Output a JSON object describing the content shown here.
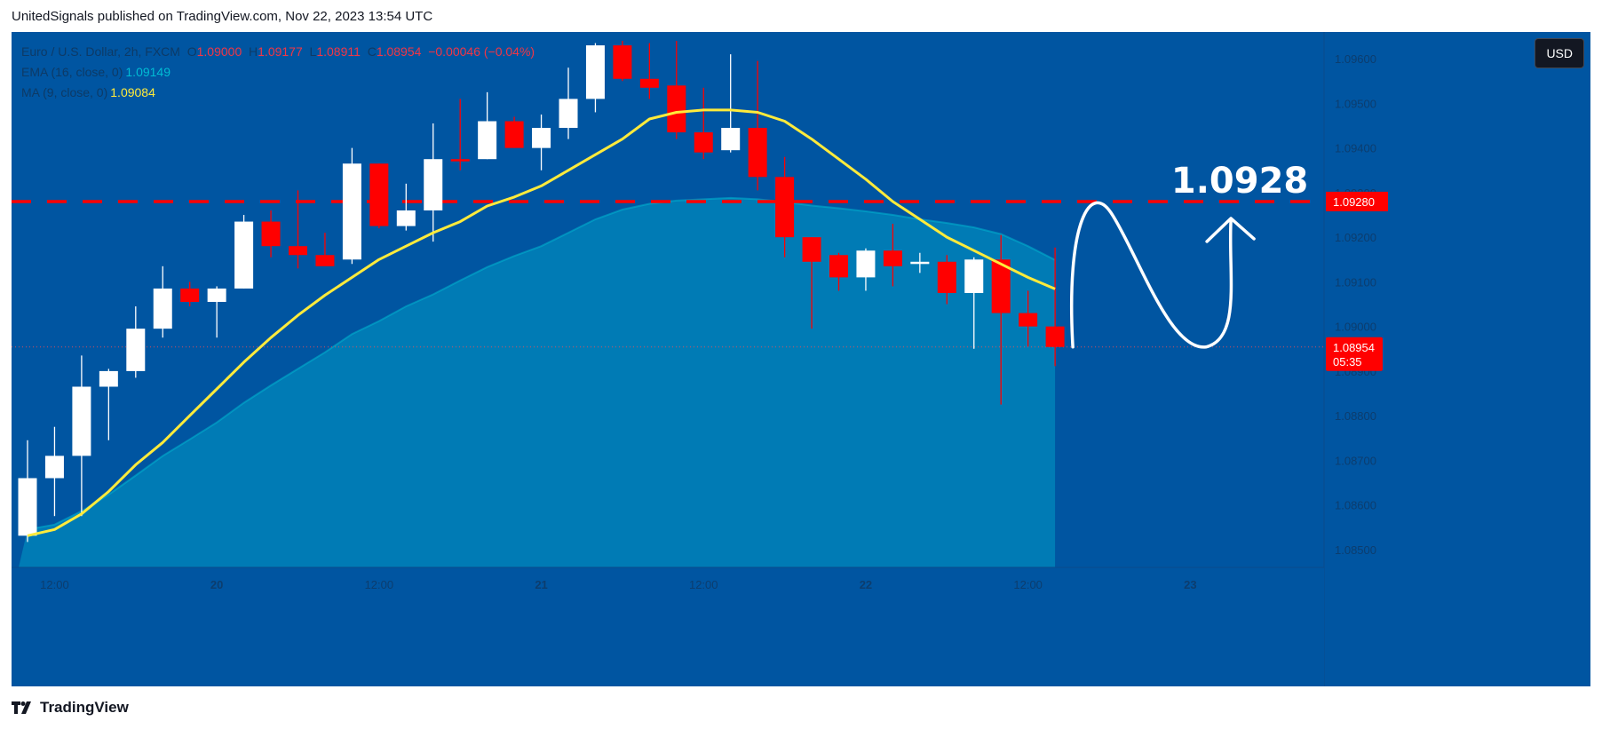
{
  "header": {
    "published_text": "UnitedSignals published on TradingView.com, Nov 22, 2023 13:54 UTC"
  },
  "legend": {
    "symbol": "Euro / U.S. Dollar, 2h, FXCM",
    "open_label": "O",
    "open": "1.09000",
    "high_label": "H",
    "high": "1.09177",
    "low_label": "L",
    "low": "1.08911",
    "close_label": "C",
    "close": "1.08954",
    "change": "−0.00046 (−0.04%)",
    "ema_label": "EMA (16, close, 0)",
    "ema_value": "1.09149",
    "ma_label": "MA (9, close, 0)",
    "ma_value": "1.09084"
  },
  "currency_button": "USD",
  "footer": {
    "brand": "TradingView"
  },
  "colors": {
    "background": "#0055a1",
    "up_candle": "#ffffff",
    "down_candle": "#ff0000",
    "ema_fill": "#0083b8",
    "ema_line": "#00bcd4",
    "ma_line": "#ffeb3b",
    "target_line": "#ff0000",
    "annotation": "#ffffff"
  },
  "chart_data": {
    "type": "candlestick",
    "ylim": [
      1.0846,
      1.0966
    ],
    "y_ticks": [
      "1.08500",
      "1.08600",
      "1.08700",
      "1.08800",
      "1.08900",
      "1.09000",
      "1.09100",
      "1.09200",
      "1.09300",
      "1.09400",
      "1.09500",
      "1.09600"
    ],
    "x_ticks": [
      {
        "bar": 1,
        "label": "12:00"
      },
      {
        "bar": 7,
        "label": "20"
      },
      {
        "bar": 13,
        "label": "12:00"
      },
      {
        "bar": 19,
        "label": "21"
      },
      {
        "bar": 25,
        "label": "12:00"
      },
      {
        "bar": 31,
        "label": "22"
      },
      {
        "bar": 37,
        "label": "12:00"
      },
      {
        "bar": 43,
        "label": "23"
      }
    ],
    "candles": [
      {
        "o": 1.08531,
        "h": 1.08745,
        "l": 1.08517,
        "c": 1.0866
      },
      {
        "o": 1.0866,
        "h": 1.08775,
        "l": 1.08575,
        "c": 1.0871
      },
      {
        "o": 1.0871,
        "h": 1.08935,
        "l": 1.08575,
        "c": 1.08865
      },
      {
        "o": 1.08865,
        "h": 1.08905,
        "l": 1.08745,
        "c": 1.089
      },
      {
        "o": 1.089,
        "h": 1.09045,
        "l": 1.08885,
        "c": 1.08995
      },
      {
        "o": 1.08995,
        "h": 1.09135,
        "l": 1.08975,
        "c": 1.09085
      },
      {
        "o": 1.09085,
        "h": 1.091,
        "l": 1.09045,
        "c": 1.09055
      },
      {
        "o": 1.09055,
        "h": 1.0909,
        "l": 1.08975,
        "c": 1.09085
      },
      {
        "o": 1.09085,
        "h": 1.0925,
        "l": 1.09085,
        "c": 1.09235
      },
      {
        "o": 1.09235,
        "h": 1.0926,
        "l": 1.09155,
        "c": 1.0918
      },
      {
        "o": 1.0918,
        "h": 1.09305,
        "l": 1.0913,
        "c": 1.0916
      },
      {
        "o": 1.0916,
        "h": 1.0921,
        "l": 1.0914,
        "c": 1.09135
      },
      {
        "o": 1.0915,
        "h": 1.094,
        "l": 1.0914,
        "c": 1.09365
      },
      {
        "o": 1.09365,
        "h": 1.09365,
        "l": 1.0922,
        "c": 1.09225
      },
      {
        "o": 1.09225,
        "h": 1.0932,
        "l": 1.09215,
        "c": 1.0926
      },
      {
        "o": 1.0926,
        "h": 1.09455,
        "l": 1.0919,
        "c": 1.09375
      },
      {
        "o": 1.09375,
        "h": 1.0951,
        "l": 1.0935,
        "c": 1.0937
      },
      {
        "o": 1.09375,
        "h": 1.09525,
        "l": 1.09375,
        "c": 1.0946
      },
      {
        "o": 1.0946,
        "h": 1.0947,
        "l": 1.094,
        "c": 1.094
      },
      {
        "o": 1.094,
        "h": 1.09475,
        "l": 1.0935,
        "c": 1.09445
      },
      {
        "o": 1.09445,
        "h": 1.0958,
        "l": 1.0942,
        "c": 1.0951
      },
      {
        "o": 1.0951,
        "h": 1.09635,
        "l": 1.0948,
        "c": 1.0963
      },
      {
        "o": 1.0963,
        "h": 1.0964,
        "l": 1.0955,
        "c": 1.09555
      },
      {
        "o": 1.09555,
        "h": 1.09635,
        "l": 1.0951,
        "c": 1.09535
      },
      {
        "o": 1.0954,
        "h": 1.0964,
        "l": 1.0942,
        "c": 1.09435
      },
      {
        "o": 1.09435,
        "h": 1.09535,
        "l": 1.09375,
        "c": 1.0939
      },
      {
        "o": 1.09395,
        "h": 1.0961,
        "l": 1.0939,
        "c": 1.09445
      },
      {
        "o": 1.09445,
        "h": 1.09595,
        "l": 1.09305,
        "c": 1.09335
      },
      {
        "o": 1.09335,
        "h": 1.0938,
        "l": 1.09155,
        "c": 1.092
      },
      {
        "o": 1.092,
        "h": 1.092,
        "l": 1.08995,
        "c": 1.09145
      },
      {
        "o": 1.0916,
        "h": 1.09165,
        "l": 1.0908,
        "c": 1.0911
      },
      {
        "o": 1.0911,
        "h": 1.09175,
        "l": 1.0908,
        "c": 1.0917
      },
      {
        "o": 1.0917,
        "h": 1.0923,
        "l": 1.0909,
        "c": 1.09135
      },
      {
        "o": 1.0914,
        "h": 1.09165,
        "l": 1.0912,
        "c": 1.09145
      },
      {
        "o": 1.09145,
        "h": 1.0916,
        "l": 1.0905,
        "c": 1.09075
      },
      {
        "o": 1.09075,
        "h": 1.09155,
        "l": 1.0895,
        "c": 1.0915
      },
      {
        "o": 1.0915,
        "h": 1.09205,
        "l": 1.08825,
        "c": 1.0903
      },
      {
        "o": 1.0903,
        "h": 1.0908,
        "l": 1.08955,
        "c": 1.09
      },
      {
        "o": 1.09,
        "h": 1.09177,
        "l": 1.08911,
        "c": 1.08954
      }
    ],
    "ema": {
      "name": "EMA (16, close, 0)",
      "values": [
        1.08545,
        1.08556,
        1.08586,
        1.08623,
        1.08666,
        1.0871,
        1.08747,
        1.08785,
        1.08829,
        1.08868,
        1.08905,
        1.08942,
        1.08983,
        1.09012,
        1.09045,
        1.09072,
        1.09103,
        1.09133,
        1.09158,
        1.0918,
        1.0921,
        1.0924,
        1.09262,
        1.09275,
        1.09282,
        1.09285,
        1.09288,
        1.09285,
        1.09279,
        1.09271,
        1.09265,
        1.09258,
        1.0925,
        1.0924,
        1.09232,
        1.09222,
        1.09207,
        1.0918,
        1.09149
      ]
    },
    "ma": {
      "name": "MA (9, close, 0)",
      "values": [
        1.08531,
        1.08545,
        1.0858,
        1.0863,
        1.0869,
        1.0874,
        1.088,
        1.0886,
        1.0892,
        1.08975,
        1.09025,
        1.0907,
        1.0911,
        1.0915,
        1.0918,
        1.0921,
        1.09235,
        1.0927,
        1.0929,
        1.09315,
        1.0935,
        1.09385,
        1.0942,
        1.09465,
        1.0948,
        1.09485,
        1.09485,
        1.0948,
        1.0946,
        1.0942,
        1.09375,
        1.0933,
        1.0928,
        1.0924,
        1.092,
        1.0917,
        1.0914,
        1.0911,
        1.09084
      ]
    },
    "target_level": 1.0928,
    "target_label": "1.09280",
    "target_annotation": "1.0928",
    "price_label": "1.08954",
    "countdown_label": "05:35"
  }
}
